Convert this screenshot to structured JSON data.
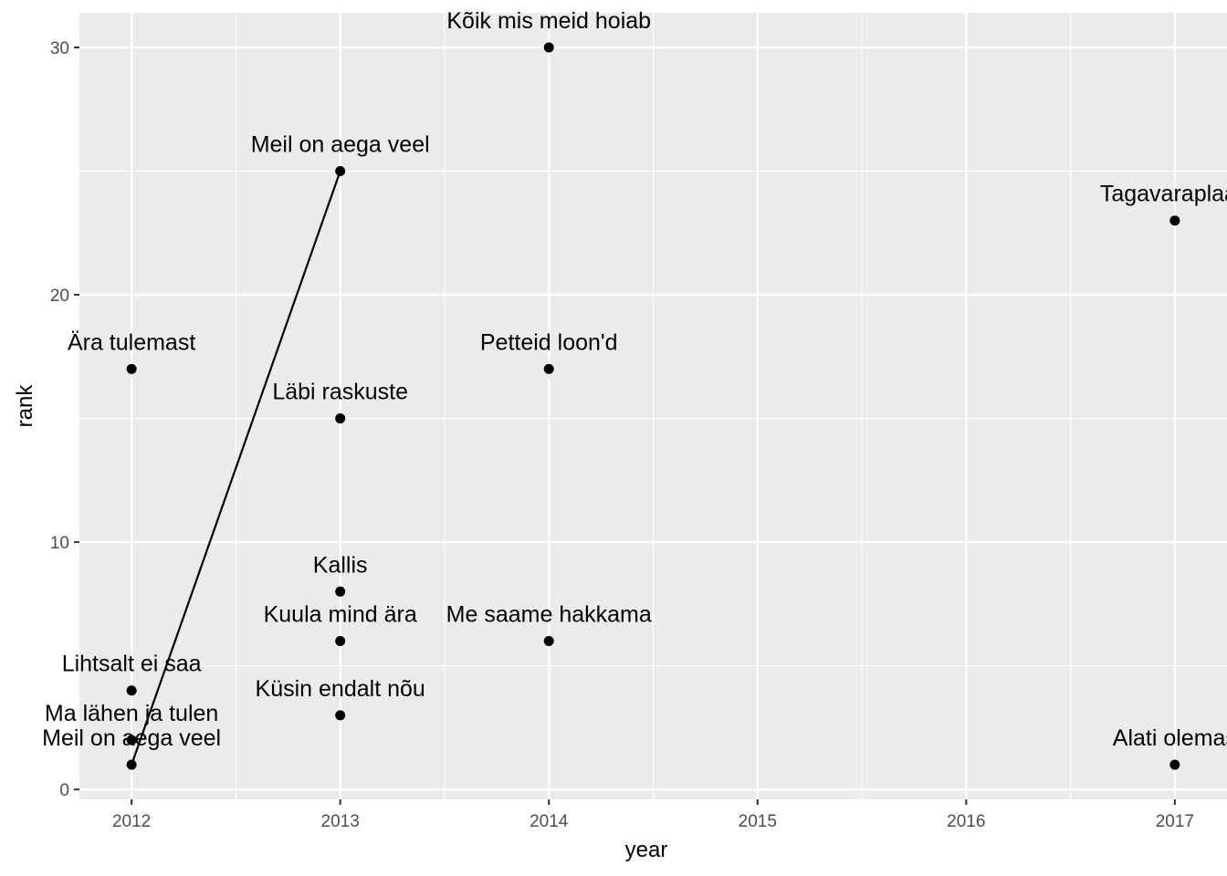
{
  "chart_data": {
    "type": "scatter",
    "xlabel": "year",
    "ylabel": "rank",
    "xlim": [
      2011.75,
      2017.25
    ],
    "ylim": [
      -0.4,
      31.4
    ],
    "x_ticks": [
      2012,
      2013,
      2014,
      2015,
      2016,
      2017
    ],
    "y_ticks": [
      0,
      10,
      20,
      30
    ],
    "x_tick_labels": [
      "2012",
      "2013",
      "2014",
      "2015",
      "2016",
      "2017"
    ],
    "y_tick_labels": [
      "0",
      "10",
      "20",
      "30"
    ],
    "grid": true,
    "legend": "none",
    "points": [
      {
        "x": 2012,
        "y": 1,
        "label": "Meil on aega veel"
      },
      {
        "x": 2012,
        "y": 2,
        "label": "Ma lähen ja tulen"
      },
      {
        "x": 2012,
        "y": 4,
        "label": "Lihtsalt ei saa"
      },
      {
        "x": 2012,
        "y": 17,
        "label": "Ära tulemast"
      },
      {
        "x": 2013,
        "y": 3,
        "label": "Küsin endalt nõu"
      },
      {
        "x": 2013,
        "y": 6,
        "label": "Kuula mind ära"
      },
      {
        "x": 2013,
        "y": 8,
        "label": "Kallis"
      },
      {
        "x": 2013,
        "y": 15,
        "label": "Läbi raskuste"
      },
      {
        "x": 2013,
        "y": 25,
        "label": "Meil on aega veel"
      },
      {
        "x": 2014,
        "y": 6,
        "label": "Me saame hakkama"
      },
      {
        "x": 2014,
        "y": 17,
        "label": "Petteid loon'd"
      },
      {
        "x": 2014,
        "y": 30,
        "label": "Kõik mis meid hoiab"
      },
      {
        "x": 2017,
        "y": 1,
        "label": "Alati olemas"
      },
      {
        "x": 2017,
        "y": 23,
        "label": "Tagavaraplaan"
      }
    ],
    "lines": [
      {
        "x": [
          2012,
          2013
        ],
        "y": [
          1,
          25
        ]
      }
    ],
    "colors": {
      "panel": "#ebebeb",
      "grid": "#ffffff",
      "point": "#000000",
      "line": "#000000",
      "tick": "#333333",
      "tick_text": "#4d4d4d"
    }
  }
}
